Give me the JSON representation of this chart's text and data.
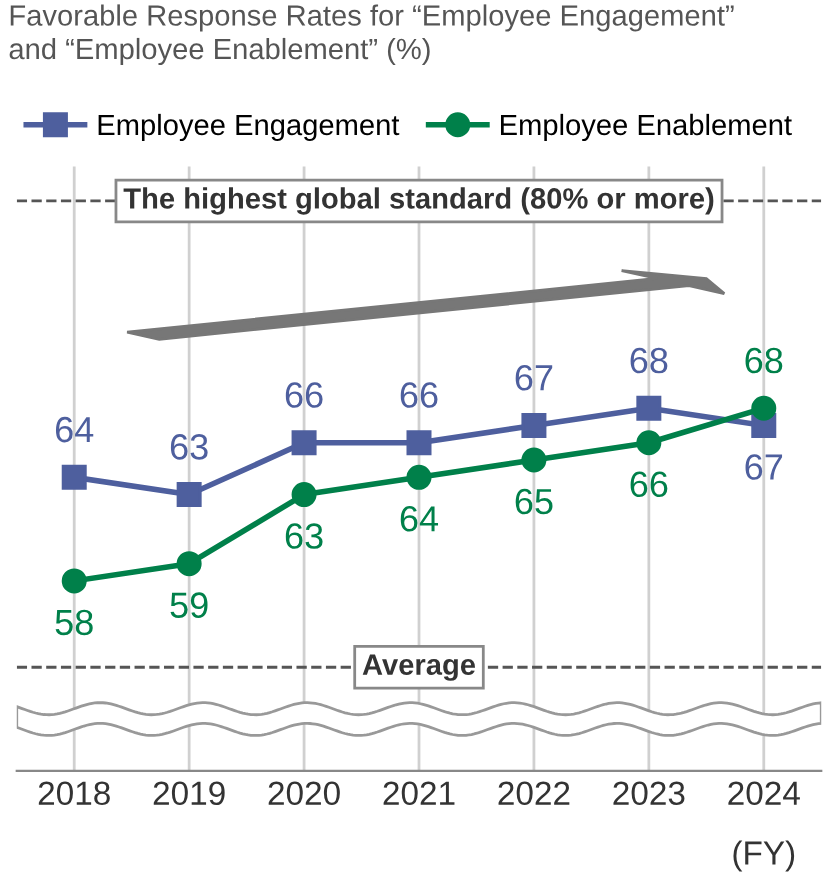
{
  "chart_data": {
    "type": "line",
    "title": "Favorable Response Rates for “Employee Engagement”\nand “Employee Enablement” (%)",
    "xlabel": "(FY)",
    "categories": [
      "2018",
      "2019",
      "2020",
      "2021",
      "2022",
      "2023",
      "2024"
    ],
    "series": [
      {
        "name": "Employee Engagement",
        "color": "#4e5f9e",
        "marker": "square",
        "values": [
          64,
          63,
          66,
          66,
          67,
          68,
          67
        ]
      },
      {
        "name": "Employee Enablement",
        "color": "#00804a",
        "marker": "circle",
        "values": [
          58,
          59,
          63,
          64,
          65,
          66,
          68
        ]
      }
    ],
    "ylim": [
      47,
      82
    ],
    "tick_labels": "x",
    "grid": "x",
    "legend": "top left",
    "data_labels": true,
    "line_style": "solid",
    "ref_lines": [
      {
        "axis": "y",
        "value": 80,
        "label": "The highest global standard (80% or more)",
        "color": "#555555",
        "line_style": "dashed"
      },
      {
        "axis": "y",
        "value": 53,
        "label": "Average",
        "color": "#555555",
        "line_style": "dashed"
      }
    ]
  }
}
